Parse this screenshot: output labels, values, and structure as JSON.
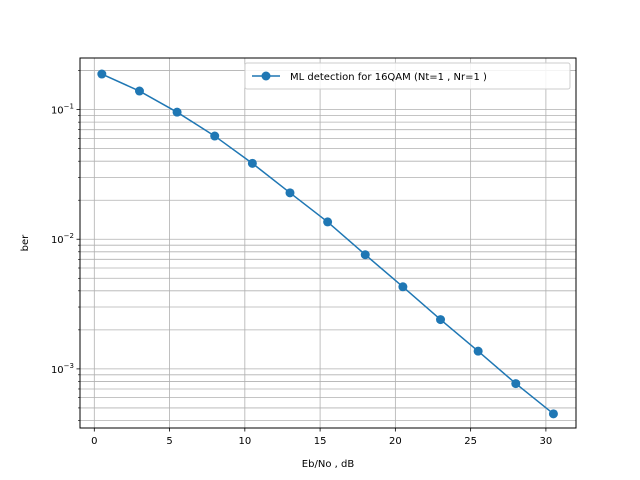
{
  "chart_data": {
    "type": "line",
    "title": "",
    "xlabel": "Eb/No , dB",
    "ylabel": "ber",
    "xscale": "linear",
    "yscale": "log",
    "xlim": [
      -0.95,
      32.0
    ],
    "ylim": [
      0.00035,
      0.25
    ],
    "x_ticks": [
      0,
      5,
      10,
      15,
      20,
      25,
      30
    ],
    "y_ticks": [
      {
        "base": "10",
        "exp": "-3",
        "value": 0.001
      },
      {
        "base": "10",
        "exp": "-2",
        "value": 0.01
      },
      {
        "base": "10",
        "exp": "-1",
        "value": 0.1
      }
    ],
    "grid": true,
    "legend_position": "upper right",
    "series": [
      {
        "name": "ML detection for 16QAM (Nt=1 , Nr=1 )",
        "color": "#1f77b4",
        "marker": "circle",
        "x": [
          0.5,
          3.0,
          5.5,
          8.0,
          10.5,
          13.0,
          15.5,
          18.0,
          20.5,
          23.0,
          25.5,
          28.0,
          30.5
        ],
        "y": [
          0.188,
          0.139,
          0.0955,
          0.0625,
          0.0385,
          0.0228,
          0.0136,
          0.0076,
          0.0043,
          0.0024,
          0.00137,
          0.00077,
          0.00045
        ]
      }
    ]
  }
}
